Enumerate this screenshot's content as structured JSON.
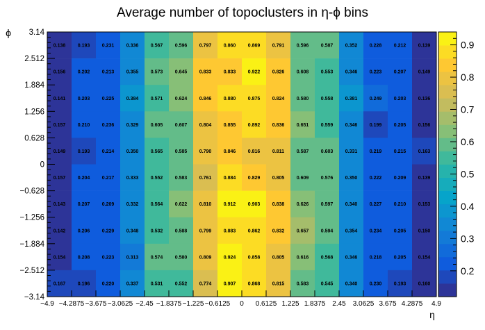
{
  "chart_data": {
    "type": "heatmap",
    "title": "Average number of topoclusters in η-ϕ bins",
    "xlabel": "η",
    "ylabel": "ϕ",
    "x_edges": [
      -4.9,
      -4.2875,
      -3.675,
      -3.0625,
      -2.45,
      -1.8375,
      -1.225,
      -0.6125,
      0,
      0.6125,
      1.225,
      1.8375,
      2.45,
      3.0625,
      3.675,
      4.2875,
      4.9
    ],
    "x_tick_labels": [
      "−4.9",
      "−4.2875",
      "−3.675",
      "−3.0625",
      "−2.45",
      "−1.8375",
      "−1.225",
      "−0.6125",
      "0",
      "0.6125",
      "1.225",
      "1.8375",
      "2.45",
      "3.0625",
      "3.675",
      "4.2875",
      "4.9"
    ],
    "y_edges": [
      -3.14,
      -2.512,
      -1.884,
      -1.256,
      -0.628,
      0,
      0.628,
      1.256,
      1.884,
      2.512,
      3.14
    ],
    "y_tick_labels": [
      "−3.14",
      "−2.512",
      "−1.884",
      "−1.256",
      "−0.628",
      "0",
      "0.628",
      "1.256",
      "1.884",
      "2.512",
      "3.14"
    ],
    "xlim": [
      -4.9,
      4.9
    ],
    "ylim": [
      -3.14,
      3.14
    ],
    "values_top_to_bottom": [
      [
        0.138,
        0.193,
        0.231,
        0.336,
        0.567,
        0.596,
        0.797,
        0.86,
        0.869,
        0.791,
        0.596,
        0.587,
        0.352,
        0.228,
        0.212,
        0.139
      ],
      [
        0.156,
        0.202,
        0.213,
        0.355,
        0.573,
        0.645,
        0.833,
        0.833,
        0.922,
        0.826,
        0.608,
        0.553,
        0.346,
        0.223,
        0.207,
        0.149
      ],
      [
        0.141,
        0.203,
        0.225,
        0.384,
        0.571,
        0.624,
        0.846,
        0.88,
        0.875,
        0.824,
        0.58,
        0.558,
        0.381,
        0.249,
        0.203,
        0.136
      ],
      [
        0.157,
        0.21,
        0.236,
        0.329,
        0.605,
        0.607,
        0.804,
        0.855,
        0.892,
        0.836,
        0.651,
        0.559,
        0.346,
        0.199,
        0.205,
        0.156
      ],
      [
        0.149,
        0.193,
        0.214,
        0.35,
        0.565,
        0.585,
        0.79,
        0.846,
        0.816,
        0.811,
        0.587,
        0.603,
        0.331,
        0.219,
        0.215,
        0.163
      ],
      [
        0.157,
        0.204,
        0.217,
        0.333,
        0.552,
        0.583,
        0.761,
        0.884,
        0.829,
        0.805,
        0.609,
        0.576,
        0.35,
        0.222,
        0.209,
        0.139
      ],
      [
        0.143,
        0.207,
        0.209,
        0.332,
        0.564,
        0.622,
        0.81,
        0.912,
        0.903,
        0.838,
        0.626,
        0.597,
        0.34,
        0.227,
        0.21,
        0.153
      ],
      [
        0.142,
        0.206,
        0.229,
        0.348,
        0.532,
        0.588,
        0.799,
        0.883,
        0.862,
        0.832,
        0.657,
        0.594,
        0.354,
        0.234,
        0.205,
        0.15
      ],
      [
        0.154,
        0.208,
        0.223,
        0.313,
        0.574,
        0.58,
        0.809,
        0.924,
        0.858,
        0.805,
        0.616,
        0.568,
        0.346,
        0.218,
        0.205,
        0.154
      ],
      [
        0.167,
        0.196,
        0.22,
        0.337,
        0.531,
        0.552,
        0.774,
        0.907,
        0.868,
        0.815,
        0.583,
        0.545,
        0.34,
        0.23,
        0.193,
        0.16
      ]
    ],
    "colorbar": {
      "zlim": [
        0.12,
        0.94
      ],
      "tick_values": [
        0.2,
        0.3,
        0.4,
        0.5,
        0.6,
        0.7,
        0.8,
        0.9
      ],
      "tick_labels": [
        "0.2",
        "0.3",
        "0.4",
        "0.5",
        "0.6",
        "0.7",
        "0.8",
        "0.9"
      ],
      "palette": [
        "#352a87",
        "#0f5cdd",
        "#1481d6",
        "#06a4ca",
        "#2eb7a4",
        "#87bf77",
        "#d1bb59",
        "#fec832",
        "#f9fb0e"
      ]
    },
    "grid": false
  }
}
